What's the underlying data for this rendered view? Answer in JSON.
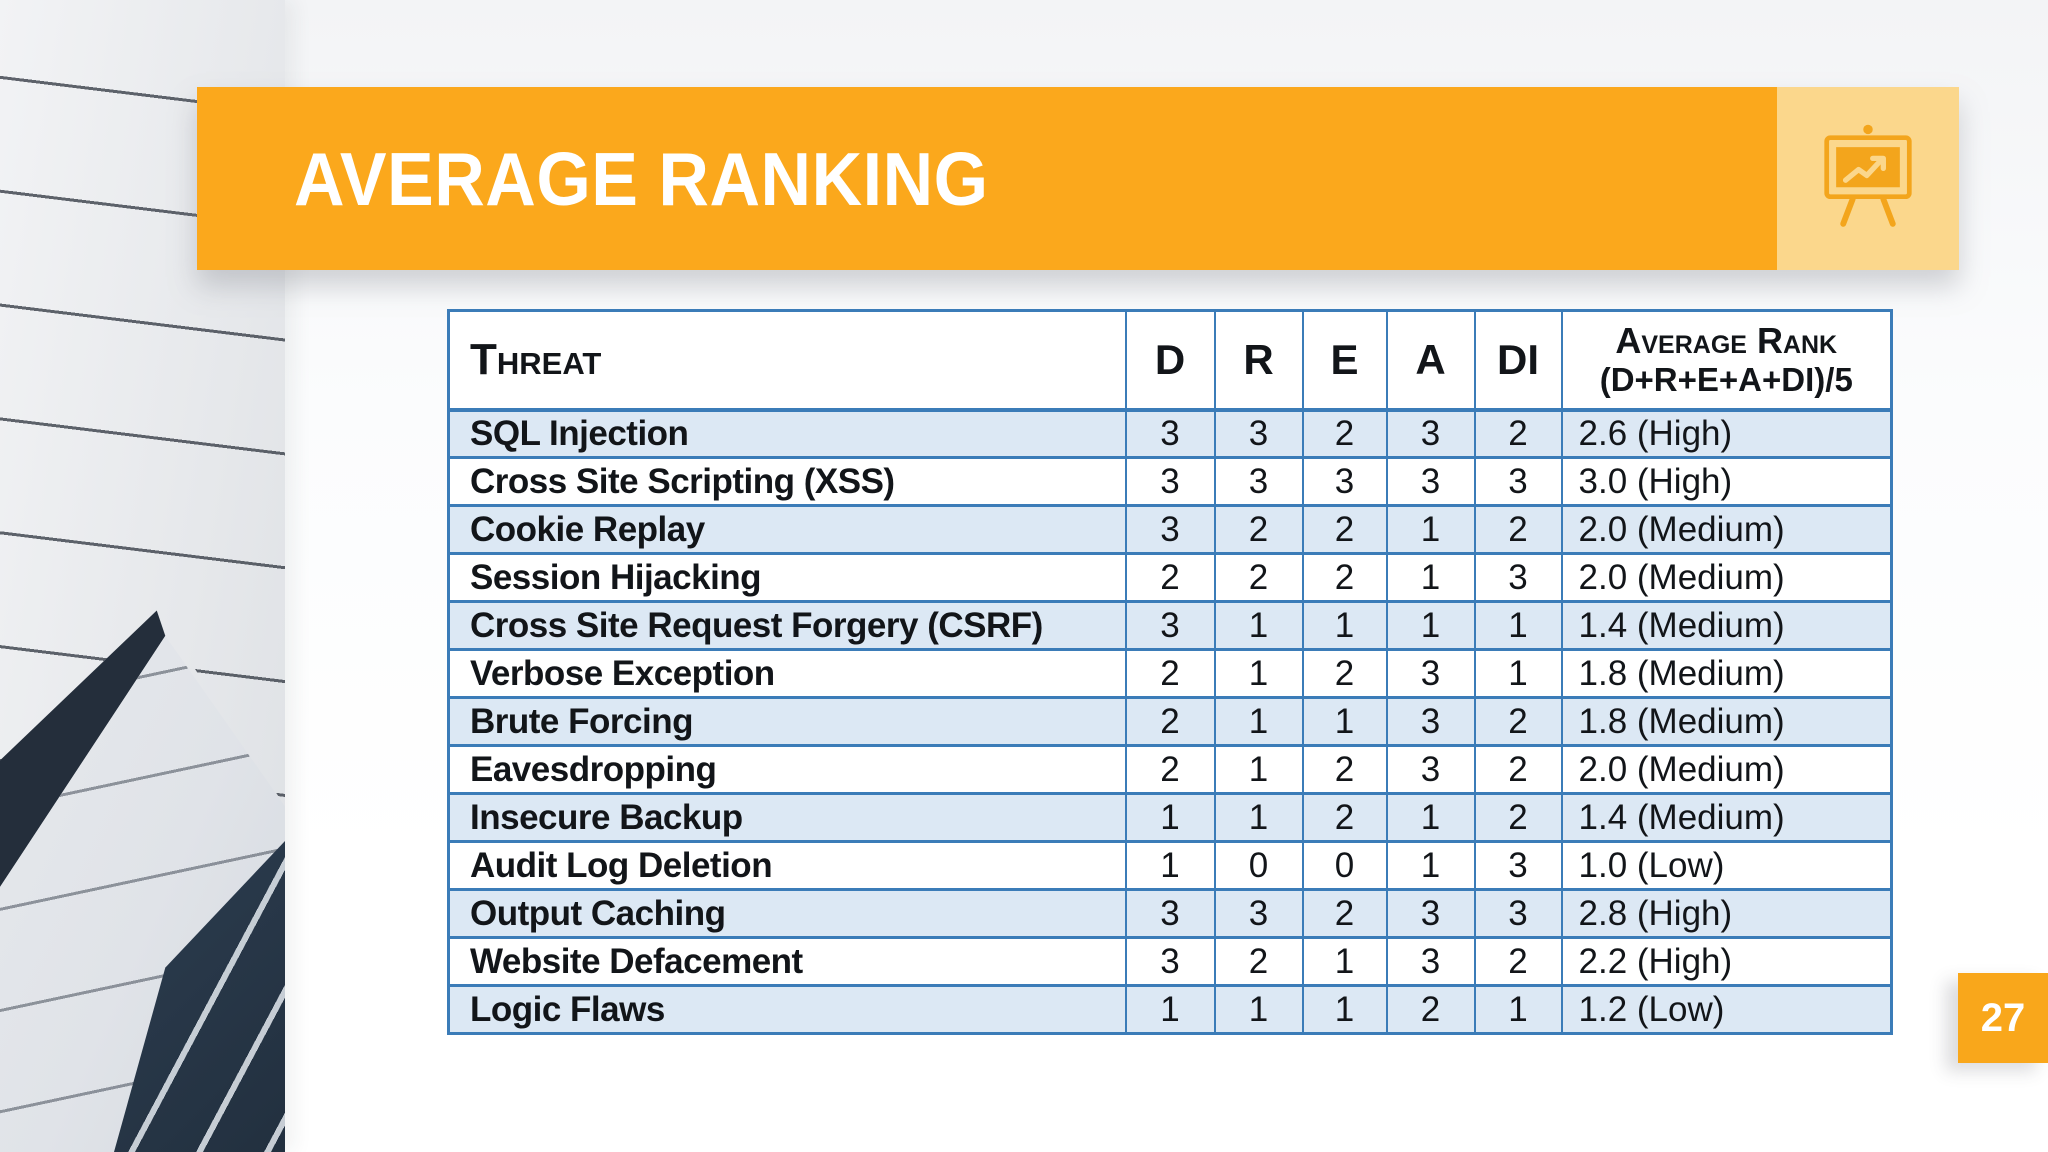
{
  "slide": {
    "title": "AVERAGE RANKING",
    "page_number": "27"
  },
  "icons": {
    "banner_icon": "presentation-chart-icon"
  },
  "colors": {
    "accent_orange": "#FBA81C",
    "accent_orange_light": "#FBD78C",
    "table_border_blue": "#3B7CB8",
    "row_stripe_blue": "#DCE8F4",
    "title_text": "#FFFFFF",
    "body_text": "#121519"
  },
  "table": {
    "header": {
      "threat": "Threat",
      "scores": [
        "D",
        "R",
        "E",
        "A",
        "DI"
      ],
      "avg_line1": "Average Rank",
      "avg_line2": "(D+R+E+A+DI)/5"
    },
    "rows": [
      {
        "threat": "SQL Injection",
        "d": "3",
        "r": "3",
        "e": "2",
        "a": "3",
        "di": "2",
        "avg": "2.6 (High)"
      },
      {
        "threat": "Cross Site Scripting (XSS)",
        "d": "3",
        "r": "3",
        "e": "3",
        "a": "3",
        "di": "3",
        "avg": "3.0 (High)"
      },
      {
        "threat": "Cookie Replay",
        "d": "3",
        "r": "2",
        "e": "2",
        "a": "1",
        "di": "2",
        "avg": "2.0 (Medium)"
      },
      {
        "threat": "Session Hijacking",
        "d": "2",
        "r": "2",
        "e": "2",
        "a": "1",
        "di": "3",
        "avg": "2.0 (Medium)"
      },
      {
        "threat": "Cross Site Request Forgery (CSRF)",
        "d": "3",
        "r": "1",
        "e": "1",
        "a": "1",
        "di": "1",
        "avg": "1.4 (Medium)"
      },
      {
        "threat": "Verbose Exception",
        "d": "2",
        "r": "1",
        "e": "2",
        "a": "3",
        "di": "1",
        "avg": "1.8 (Medium)"
      },
      {
        "threat": "Brute Forcing",
        "d": "2",
        "r": "1",
        "e": "1",
        "a": "3",
        "di": "2",
        "avg": "1.8 (Medium)"
      },
      {
        "threat": "Eavesdropping",
        "d": "2",
        "r": "1",
        "e": "2",
        "a": "3",
        "di": "2",
        "avg": "2.0 (Medium)"
      },
      {
        "threat": "Insecure Backup",
        "d": "1",
        "r": "1",
        "e": "2",
        "a": "1",
        "di": "2",
        "avg": "1.4 (Medium)"
      },
      {
        "threat": "Audit Log Deletion",
        "d": "1",
        "r": "0",
        "e": "0",
        "a": "1",
        "di": "3",
        "avg": "1.0 (Low)"
      },
      {
        "threat": "Output Caching",
        "d": "3",
        "r": "3",
        "e": "2",
        "a": "3",
        "di": "3",
        "avg": "2.8 (High)"
      },
      {
        "threat": "Website Defacement",
        "d": "3",
        "r": "2",
        "e": "1",
        "a": "3",
        "di": "2",
        "avg": "2.2 (High)"
      },
      {
        "threat": "Logic Flaws",
        "d": "1",
        "r": "1",
        "e": "1",
        "a": "2",
        "di": "1",
        "avg": "1.2 (Low)"
      }
    ]
  }
}
